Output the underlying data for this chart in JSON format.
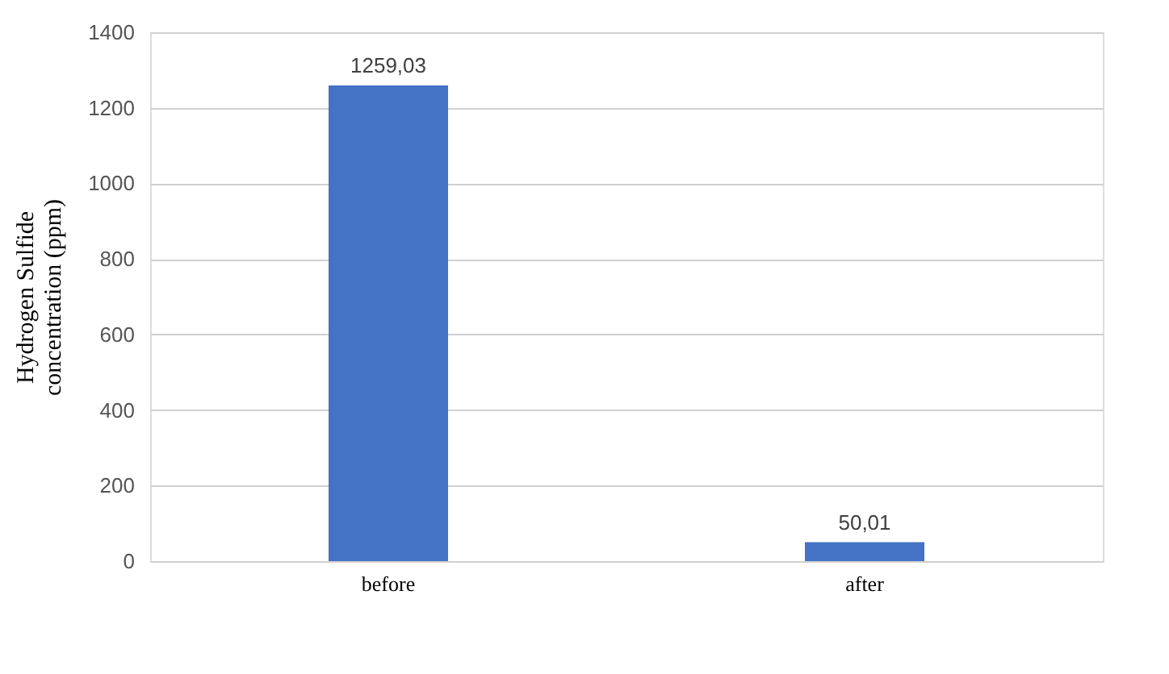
{
  "chart_data": {
    "type": "bar",
    "categories": [
      "before",
      "after"
    ],
    "values": [
      1259.03,
      50.01
    ],
    "color": "#4472c4",
    "value_labels": [
      "1259,03",
      "50,01"
    ],
    "ylabel": "Hydrogen Sulfide\nconcentration (ppm)",
    "ylim": [
      0,
      1400
    ],
    "yticks": [
      0,
      200,
      400,
      600,
      800,
      1000,
      1200,
      1400
    ],
    "grid": "y"
  }
}
